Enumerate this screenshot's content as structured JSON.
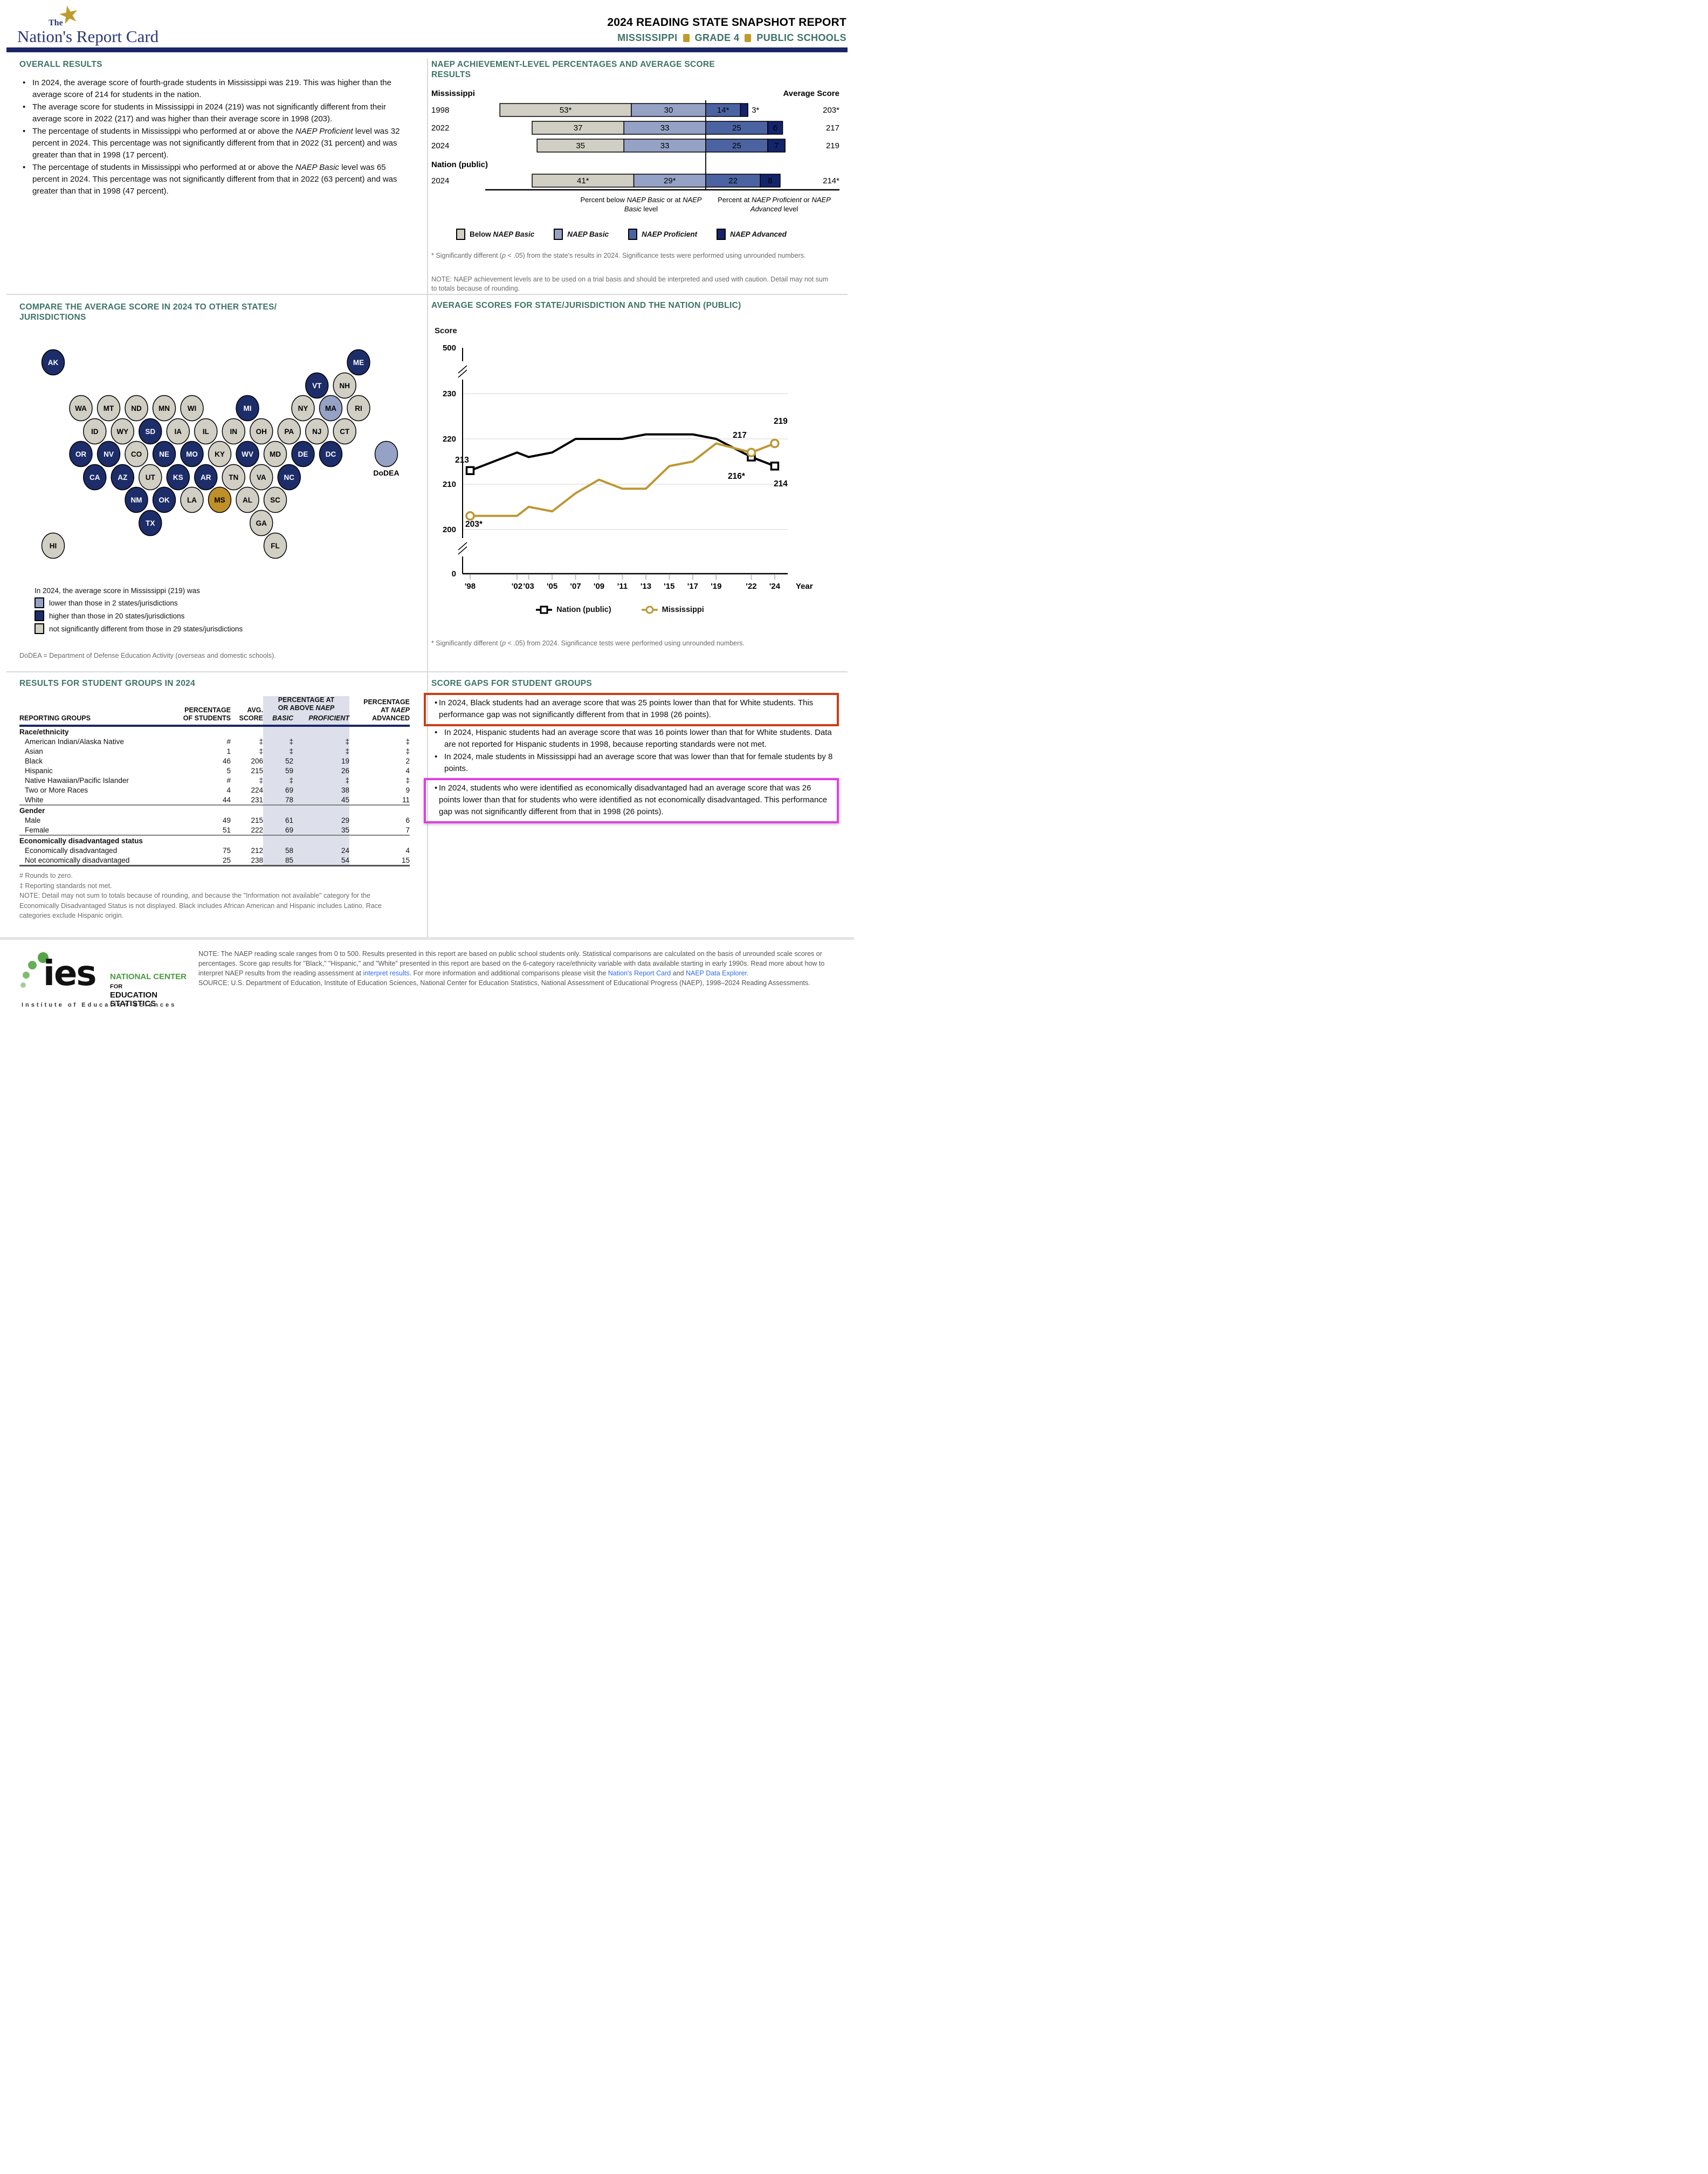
{
  "header": {
    "logo": {
      "the": "The",
      "name": "Nation's Report Card"
    },
    "title_line1": "2024 READING STATE SNAPSHOT REPORT",
    "subtitle": {
      "parts": [
        "MISSISSIPPI",
        "GRADE 4",
        "PUBLIC SCHOOLS"
      ]
    }
  },
  "sections": {
    "overall": {
      "heading": "OVERALL RESULTS",
      "bullets": [
        "In 2024, the average score of fourth-grade students in Mississippi was 219. This was higher than the average score of 214 for students in the nation.",
        "The average score for students in Mississippi in 2024 (219) was not significantly different from their average score in 2022 (217) and was higher than their average score in 1998 (203).",
        "The percentage of students in Mississippi who performed at or above the ~NAEP Proficient~ level was 32 percent in 2024. This percentage was not significantly different from that in 2022 (31 percent) and was greater than that in 1998 (17 percent).",
        "The percentage of students in Mississippi who performed at or above the ~NAEP Basic~ level was 65 percent in 2024. This percentage was not significantly different from that in 2022 (63 percent) and was greater than that in 1998 (47 percent)."
      ]
    },
    "achievement": {
      "heading_line1": "NAEP ACHIEVEMENT-LEVEL PERCENTAGES AND AVERAGE SCORE",
      "heading_line2": "RESULTS",
      "footnote1": "*  Significantly different (~p~ < .05) from the state's results in 2024. Significance tests were performed using unrounded numbers.",
      "footnote2": "NOTE:  NAEP achievement levels are to be used on a trial basis and should be interpreted and used with caution. Detail may not sum to totals because of rounding."
    },
    "compare": {
      "heading_line1": "COMPARE THE AVERAGE SCORE IN 2024 TO OTHER STATES/",
      "heading_line2": "JURISDICTIONS"
    },
    "trend": {
      "heading": "AVERAGE SCORES FOR STATE/JURISDICTION AND THE NATION (PUBLIC)",
      "footnote": "*  Significantly different (~p~ < .05) from 2024. Significance tests were performed using unrounded numbers."
    },
    "groups": {
      "heading": "RESULTS FOR STUDENT GROUPS IN 2024"
    },
    "gaps": {
      "heading": "SCORE GAPS FOR STUDENT GROUPS",
      "bullets": [
        {
          "text": "In 2024, Black students had an average score that was 25 points lower than that for White students. This performance gap was not significantly different from that in 1998 (26 points).",
          "box": "red"
        },
        {
          "text": "In 2024, Hispanic students had an average score that was 16 points lower than that for White students. Data are not reported for Hispanic students in 1998, because reporting standards were not met.",
          "box": ""
        },
        {
          "text": "In 2024, male students in Mississippi had an average score that was lower than that for female students by 8 points.",
          "box": ""
        },
        {
          "text": "In 2024, students who were identified as economically disadvantaged had an average score that was 26 points lower than that for students who were identified as not economically disadvantaged. This performance gap was not significantly different from that in 1998 (26 points).",
          "box": "magenta"
        }
      ]
    }
  },
  "table": {
    "headers": {
      "reporting_groups": "REPORTING GROUPS",
      "pct_l1": "PERCENTAGE",
      "pct_l2": "OF STUDENTS",
      "avg_l1": "AVG.",
      "avg_l2": "SCORE",
      "above_l1": "PERCENTAGE AT",
      "above_l2": "OR ABOVE ~NAEP~",
      "basic": "~BASIC~",
      "proficient": "~PROFICIENT~",
      "adv_l1": "PERCENTAGE",
      "adv_l2": "AT ~NAEP~",
      "adv_l3": "ADVANCED"
    },
    "sections": [
      {
        "label": "Race/ethnicity",
        "rows": [
          {
            "label": "American Indian/Alaska Native",
            "values": [
              "#",
              "‡",
              "‡",
              "‡",
              "‡"
            ]
          },
          {
            "label": "Asian",
            "values": [
              "1",
              "‡",
              "‡",
              "‡",
              "‡"
            ]
          },
          {
            "label": "Black",
            "values": [
              "46",
              "206",
              "52",
              "19",
              "2"
            ]
          },
          {
            "label": "Hispanic",
            "values": [
              "5",
              "215",
              "59",
              "26",
              "4"
            ]
          },
          {
            "label": "Native Hawaiian/Pacific Islander",
            "values": [
              "#",
              "‡",
              "‡",
              "‡",
              "‡"
            ]
          },
          {
            "label": "Two or More Races",
            "values": [
              "4",
              "224",
              "69",
              "38",
              "9"
            ]
          },
          {
            "label": "White",
            "values": [
              "44",
              "231",
              "78",
              "45",
              "11"
            ]
          }
        ]
      },
      {
        "label": "Gender",
        "rows": [
          {
            "label": "Male",
            "values": [
              "49",
              "215",
              "61",
              "29",
              "6"
            ]
          },
          {
            "label": "Female",
            "values": [
              "51",
              "222",
              "69",
              "35",
              "7"
            ]
          }
        ]
      },
      {
        "label": "Economically disadvantaged status",
        "rows": [
          {
            "label": "Economically disadvantaged",
            "values": [
              "75",
              "212",
              "58",
              "24",
              "4"
            ]
          },
          {
            "label": "Not economically disadvantaged",
            "values": [
              "25",
              "238",
              "85",
              "54",
              "15"
            ]
          }
        ]
      }
    ],
    "footnotes": [
      "# Rounds to zero.",
      "‡ Reporting standards not met.",
      "NOTE:  Detail may not sum to totals because of rounding, and because the \"Information not available\" category for the Economically Disadvantaged Status is not displayed. Black includes African American and Hispanic includes Latino. Race categories exclude Hispanic origin."
    ]
  },
  "footer": {
    "ies": {
      "word": "ies",
      "line1_green": "NATIONAL CENTER",
      "line1_black": " FOR",
      "line2": "EDUCATION STATISTICS",
      "institute": "Institute of Education Sciences"
    },
    "note1": "NOTE: The NAEP reading scale ranges from 0 to 500. Results presented in this report are based on public school students only. Statistical comparisons are calculated on the basis of unrounded scale scores or percentages. Score gap results for \"Black,\" \"Hispanic,\" and \"White\" presented in this report are based on the 6-category race/ethnicity variable with data available starting in early 1990s. Read more about how to interpret NAEP results from the reading assessment at ",
    "link1": "interpret results",
    "note2": ". For more information and additional comparisons please visit the ",
    "link2": "Nation's Report Card",
    "note3": " and ",
    "link3": "NAEP Data Explorer",
    "note4": ".",
    "source": "SOURCE: U.S. Department of Education, Institute of Education Sciences, National Center for Education Statistics, National Assessment of Educational Progress (NAEP), 1998–2024 Reading Assessments."
  },
  "chart_data": [
    {
      "type": "bar",
      "subtype": "stacked-horizontal-anchored",
      "title": "NAEP achievement-level percentages and average score",
      "avg_header": "Average Score",
      "group_labels": {
        "state": "Mississippi",
        "nation": "Nation (public)"
      },
      "levels": [
        "Below ~NAEP Basic~",
        "~NAEP Basic~",
        "~NAEP Proficient~",
        "~NAEP Advanced~"
      ],
      "colors": [
        "#d1cec4",
        "#95a2c6",
        "#4c63a2",
        "#14246b"
      ],
      "rows": [
        {
          "year": "1998",
          "values": [
            53,
            30,
            14,
            3
          ],
          "labels": [
            "53*",
            "30",
            "14*",
            "3*"
          ],
          "adv_outside": true,
          "avg": "203*"
        },
        {
          "year": "2022",
          "values": [
            37,
            33,
            25,
            6
          ],
          "labels": [
            "37",
            "33",
            "25",
            "6"
          ],
          "avg": "217"
        },
        {
          "year": "2024",
          "values": [
            35,
            33,
            25,
            7
          ],
          "labels": [
            "35",
            "33",
            "25",
            "7"
          ],
          "avg": "219"
        },
        {
          "year": "2024",
          "group_label": "Nation (public)",
          "values": [
            41,
            29,
            22,
            8
          ],
          "labels": [
            "41*",
            "29*",
            "22",
            "8"
          ],
          "avg": "214*"
        }
      ],
      "axis_note_left": "Percent below ~NAEP Basic~ or at ~NAEP Basic~ level",
      "axis_note_right": "Percent at ~NAEP Proficient~ or ~NAEP Advanced~ level"
    },
    {
      "type": "tile-map",
      "title": "Compare the average score in 2024 to other states/jurisdictions",
      "colors": {
        "higher": "#1d2d69",
        "lower": "#95a2c6",
        "same": "#d1cec4",
        "self": "#bf8f2a"
      },
      "legend_intro": "In 2024, the average score in Mississippi (219) was",
      "legend": [
        {
          "cat": "lower",
          "label": "lower than those in 2 states/jurisdictions"
        },
        {
          "cat": "higher",
          "label": "higher than those in 20 states/jurisdictions"
        },
        {
          "cat": "same",
          "label": "not significantly different from those in 29 states/jurisdictions"
        }
      ],
      "footnote": "DoDEA = Department of Defense Education Activity (overseas and domestic schools).",
      "tiles": [
        [
          "AK",
          0,
          -2,
          "higher"
        ],
        [
          "ME",
          0,
          20,
          "higher"
        ],
        [
          "VT",
          1,
          17,
          "higher"
        ],
        [
          "NH",
          1,
          19,
          "same"
        ],
        [
          "WA",
          2,
          0,
          "same"
        ],
        [
          "MT",
          2,
          2,
          "same"
        ],
        [
          "ND",
          2,
          4,
          "same"
        ],
        [
          "MN",
          2,
          6,
          "same"
        ],
        [
          "WI",
          2,
          8,
          "same"
        ],
        [
          "MI",
          2,
          12,
          "higher"
        ],
        [
          "NY",
          2,
          16,
          "same"
        ],
        [
          "MA",
          2,
          18,
          "lower"
        ],
        [
          "RI",
          2,
          20,
          "same"
        ],
        [
          "ID",
          3,
          1,
          "same"
        ],
        [
          "WY",
          3,
          3,
          "same"
        ],
        [
          "SD",
          3,
          5,
          "higher"
        ],
        [
          "IA",
          3,
          7,
          "same"
        ],
        [
          "IL",
          3,
          9,
          "same"
        ],
        [
          "IN",
          3,
          11,
          "same"
        ],
        [
          "OH",
          3,
          13,
          "same"
        ],
        [
          "PA",
          3,
          15,
          "same"
        ],
        [
          "NJ",
          3,
          17,
          "same"
        ],
        [
          "CT",
          3,
          19,
          "same"
        ],
        [
          "OR",
          4,
          0,
          "higher"
        ],
        [
          "NV",
          4,
          2,
          "higher"
        ],
        [
          "CO",
          4,
          4,
          "same"
        ],
        [
          "NE",
          4,
          6,
          "higher"
        ],
        [
          "MO",
          4,
          8,
          "higher"
        ],
        [
          "KY",
          4,
          10,
          "same"
        ],
        [
          "WV",
          4,
          12,
          "higher"
        ],
        [
          "MD",
          4,
          14,
          "same"
        ],
        [
          "DE",
          4,
          16,
          "higher"
        ],
        [
          "DC",
          4,
          18,
          "higher"
        ],
        [
          "DoDEA",
          4,
          22,
          "lower",
          true
        ],
        [
          "CA",
          5,
          1,
          "higher"
        ],
        [
          "AZ",
          5,
          3,
          "higher"
        ],
        [
          "UT",
          5,
          5,
          "same"
        ],
        [
          "KS",
          5,
          7,
          "higher"
        ],
        [
          "AR",
          5,
          9,
          "higher"
        ],
        [
          "TN",
          5,
          11,
          "same"
        ],
        [
          "VA",
          5,
          13,
          "same"
        ],
        [
          "NC",
          5,
          15,
          "higher"
        ],
        [
          "NM",
          6,
          4,
          "higher"
        ],
        [
          "OK",
          6,
          6,
          "higher"
        ],
        [
          "LA",
          6,
          8,
          "same"
        ],
        [
          "MS",
          6,
          10,
          "self"
        ],
        [
          "AL",
          6,
          12,
          "same"
        ],
        [
          "SC",
          6,
          14,
          "same"
        ],
        [
          "TX",
          7,
          5,
          "higher"
        ],
        [
          "GA",
          7,
          13,
          "same"
        ],
        [
          "HI",
          8,
          -2,
          "same"
        ],
        [
          "FL",
          8,
          14,
          "same"
        ]
      ]
    },
    {
      "type": "line",
      "title": "Average scores for state/jurisdiction and the nation (public)",
      "ylabel": "Score",
      "xlabel": "Year",
      "x": [
        1998,
        2002,
        2003,
        2005,
        2007,
        2009,
        2011,
        2013,
        2015,
        2017,
        2019,
        2022,
        2024
      ],
      "x_tick_labels": [
        "'98",
        "'02",
        "'03",
        "'05",
        "'07",
        "'09",
        "'11",
        "'13",
        "'15",
        "'17",
        "'19",
        "'22",
        "'24"
      ],
      "y_ticks": [
        0,
        200,
        210,
        220,
        230,
        500
      ],
      "ylim_display": "broken axis: 0 // 200-230 // 500",
      "series": [
        {
          "name": "Nation (public)",
          "color": "#000000",
          "marker": "square",
          "values": [
            213,
            217,
            216,
            217,
            220,
            220,
            220,
            221,
            221,
            221,
            220,
            216,
            214
          ],
          "point_labels": {
            "1998": "213",
            "2022": "216*",
            "2024": "214"
          }
        },
        {
          "name": "Mississippi",
          "color": "#bd9733",
          "marker": "circle",
          "values": [
            203,
            203,
            205,
            204,
            208,
            211,
            209,
            209,
            214,
            215,
            219,
            217,
            219
          ],
          "point_labels": {
            "1998": "203*",
            "2022": "217",
            "2024": "219"
          }
        }
      ]
    }
  ]
}
